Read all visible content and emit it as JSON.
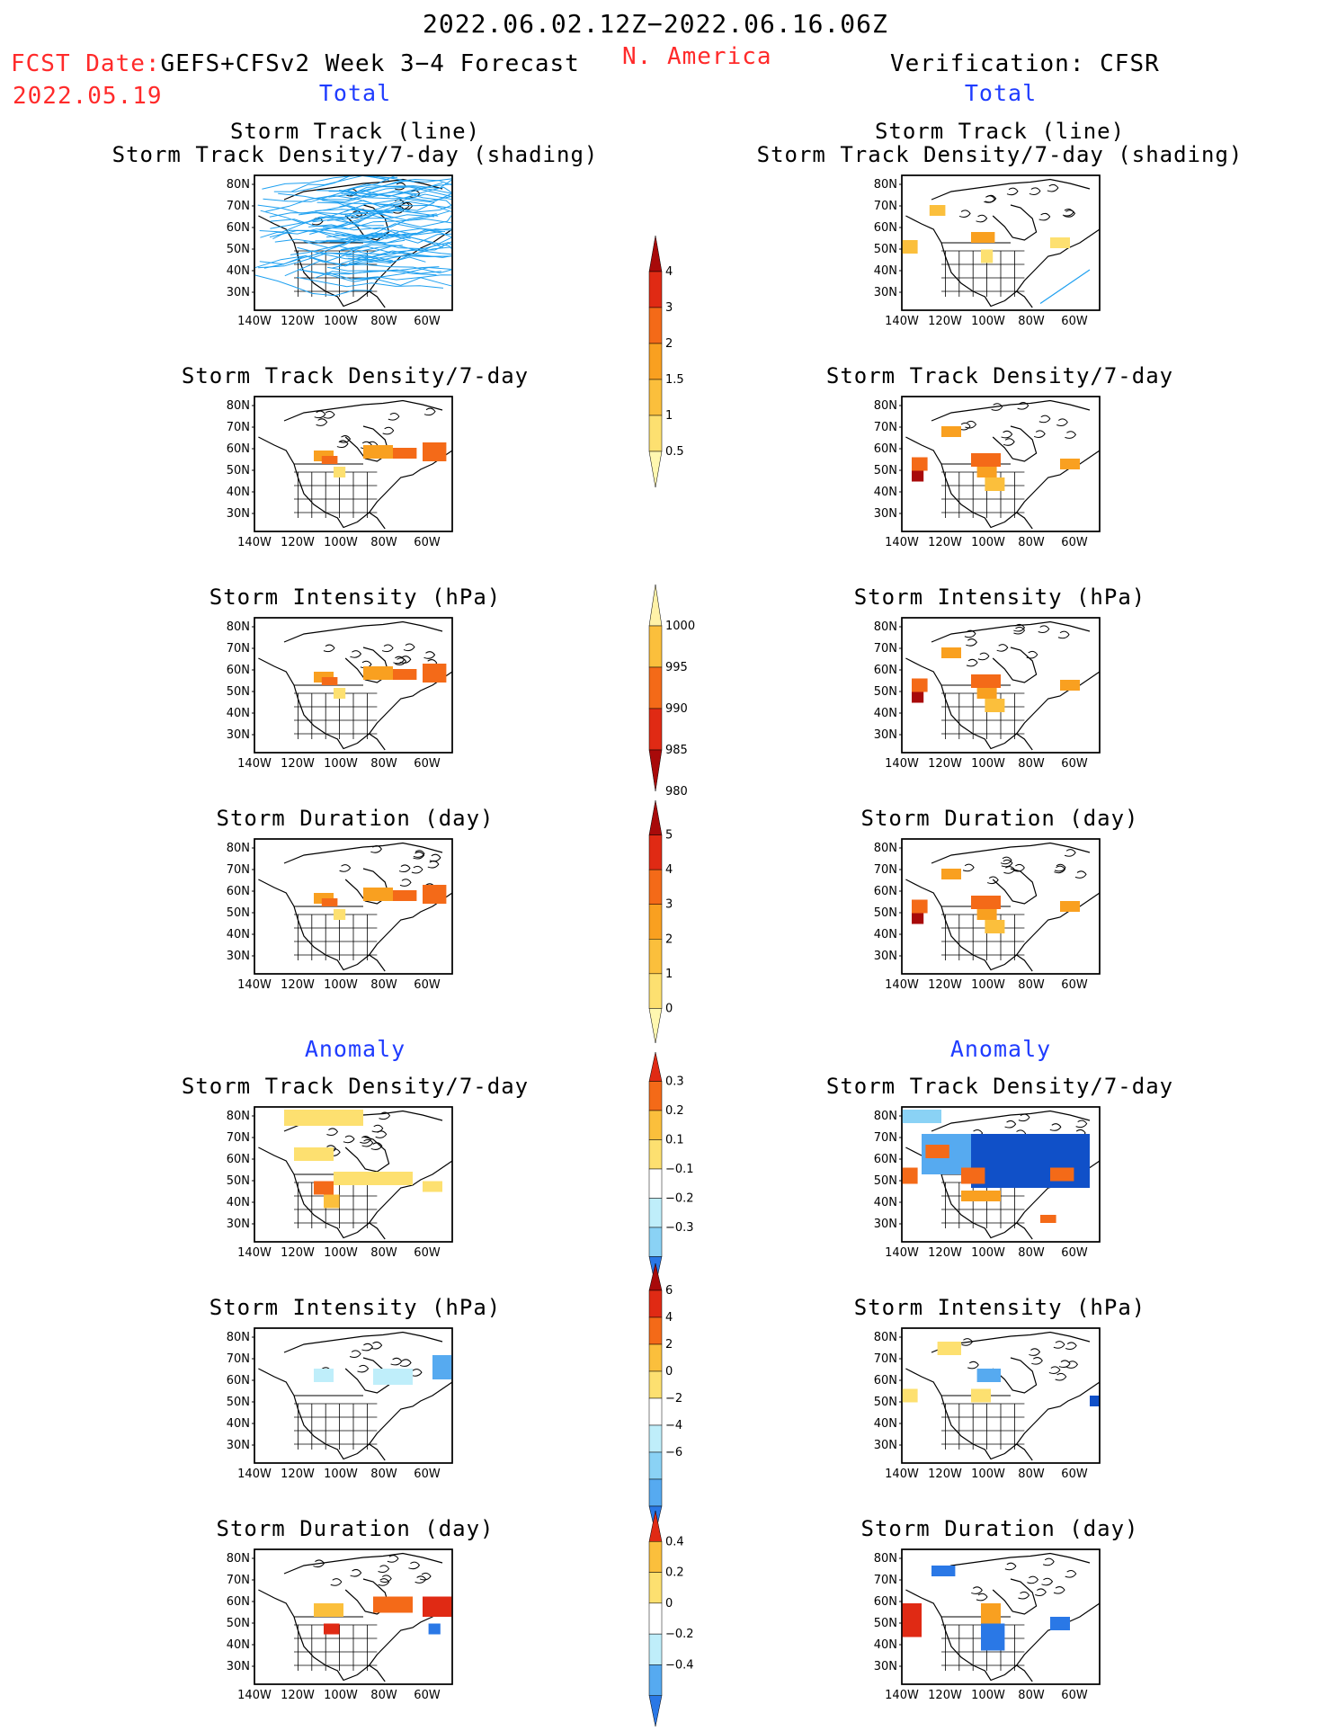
{
  "header": {
    "date_range": "2022.06.02.12Z−2022.06.16.06Z",
    "fcst_date_label": "FCST Date:",
    "fcst_date_value": "2022.05.19",
    "forecast_label": "GEFS+CFSv2 Week 3−4 Forecast",
    "region": "N. America",
    "verification_label": "Verification: CFSR",
    "left_section_total": "Total",
    "right_section_total": "Total",
    "left_section_anomaly": "Anomaly",
    "right_section_anomaly": "Anomaly"
  },
  "colors": {
    "red_text": "#ff2a2a",
    "blue_text": "#1f3cff",
    "track_line": "#1ea0f0",
    "pos": [
      "#fff2a8",
      "#fde070",
      "#fbbf3c",
      "#f9a020",
      "#f46a18",
      "#e02a14",
      "#a80a0a"
    ],
    "neg": [
      "#bfeefa",
      "#8ad2f5",
      "#56aaf0",
      "#2a78e6",
      "#1050c8"
    ]
  },
  "axis": {
    "lat_labels": [
      "80N",
      "70N",
      "60N",
      "50N",
      "40N",
      "30N"
    ],
    "lon_labels": [
      "140W",
      "120W",
      "100W",
      "80W",
      "60W"
    ]
  },
  "titles": {
    "track_line": "Storm Track (line)",
    "track_shading": "Storm Track Density/7-day (shading)",
    "density": "Storm Track Density/7-day",
    "intensity": "Storm Intensity (hPa)",
    "duration": "Storm Duration (day)"
  },
  "colorbars": [
    {
      "id": "density",
      "labels": [
        "4",
        "3",
        "2",
        "1.5",
        "1",
        "0.5"
      ]
    },
    {
      "id": "intensity",
      "labels": [
        "1000",
        "995",
        "990",
        "985",
        "980"
      ]
    },
    {
      "id": "duration",
      "labels": [
        "5",
        "4",
        "3",
        "2",
        "1",
        "0"
      ]
    },
    {
      "id": "density_anom",
      "labels": [
        "0.3",
        "0.2",
        "0.1",
        "−0.1",
        "−0.2",
        "−0.3"
      ]
    },
    {
      "id": "intensity_anom",
      "labels": [
        "6",
        "4",
        "2",
        "0",
        "−2",
        "−4",
        "−6"
      ]
    },
    {
      "id": "duration_anom",
      "labels": [
        "0.4",
        "0.2",
        "0",
        "−0.2",
        "−0.4"
      ]
    }
  ]
}
